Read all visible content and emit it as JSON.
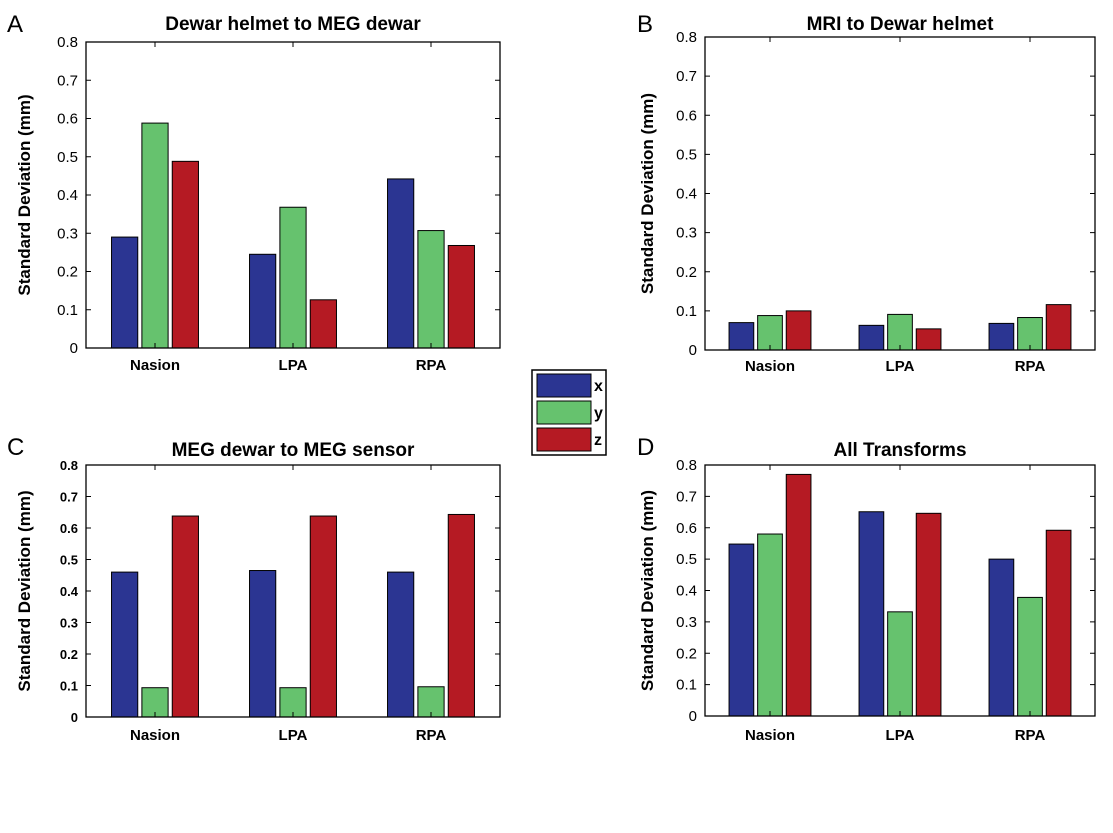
{
  "legend": [
    {
      "label": "x",
      "color": "#2b3592"
    },
    {
      "label": "y",
      "color": "#66c26e"
    },
    {
      "label": "z",
      "color": "#b51a23"
    }
  ],
  "chart_data": [
    {
      "panel": "A",
      "type": "bar",
      "title": "Dewar helmet to MEG dewar",
      "ylabel": "Standard Deviation (mm)",
      "categories": [
        "Nasion",
        "LPA",
        "RPA"
      ],
      "ylim": [
        0,
        0.8
      ],
      "yticks": [
        "0",
        "0.1",
        "0.2",
        "0.3",
        "0.4",
        "0.5",
        "0.6",
        "0.7",
        "0.8"
      ],
      "series": [
        {
          "name": "x",
          "values": [
            0.29,
            0.245,
            0.442
          ]
        },
        {
          "name": "y",
          "values": [
            0.588,
            0.368,
            0.307
          ]
        },
        {
          "name": "z",
          "values": [
            0.488,
            0.126,
            0.268
          ]
        }
      ]
    },
    {
      "panel": "B",
      "type": "bar",
      "title": "MRI to Dewar helmet",
      "ylabel": "Standard Deviation (mm)",
      "categories": [
        "Nasion",
        "LPA",
        "RPA"
      ],
      "ylim": [
        0,
        0.8
      ],
      "yticks": [
        "0",
        "0.1",
        "0.2",
        "0.3",
        "0.4",
        "0.5",
        "0.6",
        "0.7",
        "0.8"
      ],
      "series": [
        {
          "name": "x",
          "values": [
            0.07,
            0.063,
            0.068
          ]
        },
        {
          "name": "y",
          "values": [
            0.088,
            0.091,
            0.083
          ]
        },
        {
          "name": "z",
          "values": [
            0.1,
            0.054,
            0.116
          ]
        }
      ]
    },
    {
      "panel": "C",
      "type": "bar",
      "title": "MEG dewar to MEG sensor",
      "ylabel": "Standard Deviation (mm)",
      "categories": [
        "Nasion",
        "LPA",
        "RPA"
      ],
      "ylim": [
        0,
        0.8
      ],
      "yticks": [
        "0",
        "0.1",
        "0.2",
        "0.3",
        "0.4",
        "0.5",
        "0.6",
        "0.7",
        "0.8"
      ],
      "series": [
        {
          "name": "x",
          "values": [
            0.46,
            0.465,
            0.46
          ]
        },
        {
          "name": "y",
          "values": [
            0.093,
            0.093,
            0.096
          ]
        },
        {
          "name": "z",
          "values": [
            0.638,
            0.638,
            0.643
          ]
        }
      ]
    },
    {
      "panel": "D",
      "type": "bar",
      "title": "All Transforms",
      "ylabel": "Standard Deviation (mm)",
      "categories": [
        "Nasion",
        "LPA",
        "RPA"
      ],
      "ylim": [
        0,
        0.8
      ],
      "yticks": [
        "0",
        "0.1",
        "0.2",
        "0.3",
        "0.4",
        "0.5",
        "0.6",
        "0.7",
        "0.8"
      ],
      "series": [
        {
          "name": "x",
          "values": [
            0.548,
            0.651,
            0.5
          ]
        },
        {
          "name": "y",
          "values": [
            0.58,
            0.332,
            0.378
          ]
        },
        {
          "name": "z",
          "values": [
            0.77,
            0.646,
            0.592
          ]
        }
      ]
    }
  ]
}
